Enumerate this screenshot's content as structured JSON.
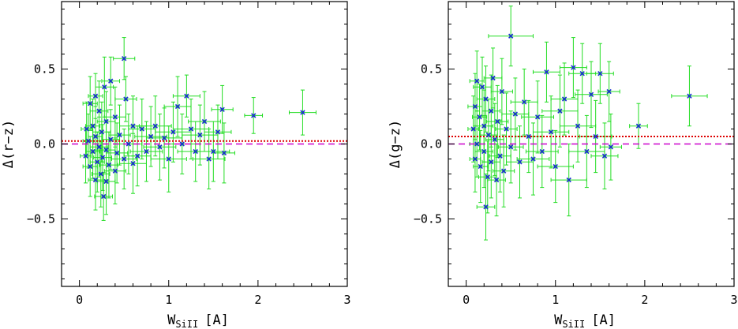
{
  "colors": {
    "errorbar": "#22dd22",
    "point": "#1a2fd0",
    "reference_line": "#cc00cc",
    "mean_line": "#dd0000",
    "axis": "#000000"
  },
  "chart_data": [
    {
      "type": "scatter",
      "xlabel": "W",
      "xlabel_sub": "SiII",
      "xlabel_unit": "[A]",
      "ylabel": "Δ(r−z)",
      "xlim": [
        -0.2,
        3.0
      ],
      "ylim": [
        -0.95,
        0.95
      ],
      "x_ticks": [
        0,
        1,
        2,
        3
      ],
      "y_ticks": [
        0.5,
        0.0,
        -0.5
      ],
      "x_tick_labels": [
        "0",
        "1",
        "2",
        "3"
      ],
      "y_tick_labels": [
        "0.5",
        "0.0",
        "−0.5"
      ],
      "reference_line": {
        "y": 0.0,
        "style": "dashed"
      },
      "mean_line": {
        "y": 0.02,
        "style": "dotted"
      },
      "points": [
        {
          "x": 0.5,
          "y": 0.57,
          "xerr": 0.12,
          "yerr": 0.14
        },
        {
          "x": 0.35,
          "y": 0.42,
          "xerr": 0.1,
          "yerr": 0.16
        },
        {
          "x": 0.28,
          "y": 0.38,
          "xerr": 0.1,
          "yerr": 0.2
        },
        {
          "x": 0.18,
          "y": 0.32,
          "xerr": 0.08,
          "yerr": 0.15
        },
        {
          "x": 0.52,
          "y": 0.3,
          "xerr": 0.12,
          "yerr": 0.15
        },
        {
          "x": 0.12,
          "y": 0.27,
          "xerr": 0.08,
          "yerr": 0.18
        },
        {
          "x": 0.22,
          "y": 0.22,
          "xerr": 0.1,
          "yerr": 0.2
        },
        {
          "x": 0.4,
          "y": 0.18,
          "xerr": 0.12,
          "yerr": 0.2
        },
        {
          "x": 0.3,
          "y": 0.15,
          "xerr": 0.1,
          "yerr": 0.2
        },
        {
          "x": 0.15,
          "y": 0.12,
          "xerr": 0.08,
          "yerr": 0.18
        },
        {
          "x": 0.6,
          "y": 0.12,
          "xerr": 0.15,
          "yerr": 0.2
        },
        {
          "x": 0.08,
          "y": 0.1,
          "xerr": 0.06,
          "yerr": 0.18
        },
        {
          "x": 0.25,
          "y": 0.08,
          "xerr": 0.1,
          "yerr": 0.2
        },
        {
          "x": 0.45,
          "y": 0.06,
          "xerr": 0.12,
          "yerr": 0.2
        },
        {
          "x": 0.18,
          "y": 0.05,
          "xerr": 0.08,
          "yerr": 0.2
        },
        {
          "x": 0.35,
          "y": 0.03,
          "xerr": 0.1,
          "yerr": 0.2
        },
        {
          "x": 0.1,
          "y": 0.02,
          "xerr": 0.06,
          "yerr": 0.18
        },
        {
          "x": 0.55,
          "y": 0.0,
          "xerr": 0.15,
          "yerr": 0.2
        },
        {
          "x": 0.22,
          "y": -0.02,
          "xerr": 0.1,
          "yerr": 0.2
        },
        {
          "x": 0.3,
          "y": -0.04,
          "xerr": 0.1,
          "yerr": 0.2
        },
        {
          "x": 0.15,
          "y": -0.05,
          "xerr": 0.08,
          "yerr": 0.18
        },
        {
          "x": 0.42,
          "y": -0.06,
          "xerr": 0.12,
          "yerr": 0.2
        },
        {
          "x": 0.07,
          "y": -0.08,
          "xerr": 0.06,
          "yerr": 0.18
        },
        {
          "x": 0.26,
          "y": -0.09,
          "xerr": 0.1,
          "yerr": 0.22
        },
        {
          "x": 0.5,
          "y": -0.1,
          "xerr": 0.14,
          "yerr": 0.2
        },
        {
          "x": 0.2,
          "y": -0.12,
          "xerr": 0.08,
          "yerr": 0.2
        },
        {
          "x": 0.33,
          "y": -0.14,
          "xerr": 0.1,
          "yerr": 0.22
        },
        {
          "x": 0.12,
          "y": -0.15,
          "xerr": 0.08,
          "yerr": 0.2
        },
        {
          "x": 0.6,
          "y": -0.13,
          "xerr": 0.15,
          "yerr": 0.2
        },
        {
          "x": 0.4,
          "y": -0.18,
          "xerr": 0.12,
          "yerr": 0.22
        },
        {
          "x": 0.24,
          "y": -0.2,
          "xerr": 0.1,
          "yerr": 0.22
        },
        {
          "x": 0.18,
          "y": -0.24,
          "xerr": 0.08,
          "yerr": 0.2
        },
        {
          "x": 0.3,
          "y": -0.25,
          "xerr": 0.1,
          "yerr": 0.22
        },
        {
          "x": 0.27,
          "y": -0.35,
          "xerr": 0.1,
          "yerr": 0.16
        },
        {
          "x": 0.7,
          "y": 0.1,
          "xerr": 0.15,
          "yerr": 0.2
        },
        {
          "x": 0.75,
          "y": -0.05,
          "xerr": 0.18,
          "yerr": 0.2
        },
        {
          "x": 0.8,
          "y": 0.05,
          "xerr": 0.18,
          "yerr": 0.2
        },
        {
          "x": 0.65,
          "y": -0.08,
          "xerr": 0.15,
          "yerr": 0.2
        },
        {
          "x": 0.85,
          "y": 0.12,
          "xerr": 0.18,
          "yerr": 0.2
        },
        {
          "x": 0.9,
          "y": -0.02,
          "xerr": 0.18,
          "yerr": 0.22
        },
        {
          "x": 0.95,
          "y": 0.04,
          "xerr": 0.2,
          "yerr": 0.2
        },
        {
          "x": 1.0,
          "y": -0.1,
          "xerr": 0.2,
          "yerr": 0.22
        },
        {
          "x": 1.05,
          "y": 0.08,
          "xerr": 0.2,
          "yerr": 0.2
        },
        {
          "x": 1.1,
          "y": 0.25,
          "xerr": 0.15,
          "yerr": 0.2
        },
        {
          "x": 1.15,
          "y": 0.0,
          "xerr": 0.2,
          "yerr": 0.2
        },
        {
          "x": 1.2,
          "y": 0.32,
          "xerr": 0.15,
          "yerr": 0.14
        },
        {
          "x": 1.25,
          "y": 0.1,
          "xerr": 0.2,
          "yerr": 0.2
        },
        {
          "x": 1.3,
          "y": -0.05,
          "xerr": 0.2,
          "yerr": 0.2
        },
        {
          "x": 1.35,
          "y": 0.06,
          "xerr": 0.2,
          "yerr": 0.2
        },
        {
          "x": 1.4,
          "y": 0.15,
          "xerr": 0.18,
          "yerr": 0.2
        },
        {
          "x": 1.45,
          "y": -0.1,
          "xerr": 0.18,
          "yerr": 0.2
        },
        {
          "x": 1.5,
          "y": -0.05,
          "xerr": 0.18,
          "yerr": 0.2
        },
        {
          "x": 1.55,
          "y": 0.08,
          "xerr": 0.15,
          "yerr": 0.18
        },
        {
          "x": 1.6,
          "y": 0.23,
          "xerr": 0.12,
          "yerr": 0.16
        },
        {
          "x": 1.62,
          "y": -0.06,
          "xerr": 0.12,
          "yerr": 0.2
        },
        {
          "x": 1.95,
          "y": 0.19,
          "xerr": 0.1,
          "yerr": 0.12
        },
        {
          "x": 2.5,
          "y": 0.21,
          "xerr": 0.15,
          "yerr": 0.15
        }
      ]
    },
    {
      "type": "scatter",
      "xlabel": "W",
      "xlabel_sub": "SiII",
      "xlabel_unit": "[A]",
      "ylabel": "Δ(g−z)",
      "xlim": [
        -0.2,
        3.0
      ],
      "ylim": [
        -0.95,
        0.95
      ],
      "x_ticks": [
        0,
        1,
        2,
        3
      ],
      "y_ticks": [
        0.5,
        0.0,
        -0.5
      ],
      "x_tick_labels": [
        "0",
        "1",
        "2",
        "3"
      ],
      "y_tick_labels": [
        "0.5",
        "0.0",
        "−0.5"
      ],
      "reference_line": {
        "y": 0.0,
        "style": "dashed"
      },
      "mean_line": {
        "y": 0.05,
        "style": "dotted"
      },
      "points": [
        {
          "x": 0.5,
          "y": 0.72,
          "xerr": 0.25,
          "yerr": 0.2
        },
        {
          "x": 0.12,
          "y": 0.42,
          "xerr": 0.08,
          "yerr": 0.2
        },
        {
          "x": 0.3,
          "y": 0.44,
          "xerr": 0.1,
          "yerr": 0.2
        },
        {
          "x": 0.18,
          "y": 0.38,
          "xerr": 0.1,
          "yerr": 0.2
        },
        {
          "x": 0.4,
          "y": 0.35,
          "xerr": 0.12,
          "yerr": 0.22
        },
        {
          "x": 0.22,
          "y": 0.3,
          "xerr": 0.1,
          "yerr": 0.22
        },
        {
          "x": 0.1,
          "y": 0.25,
          "xerr": 0.08,
          "yerr": 0.22
        },
        {
          "x": 0.28,
          "y": 0.22,
          "xerr": 0.1,
          "yerr": 0.24
        },
        {
          "x": 0.55,
          "y": 0.2,
          "xerr": 0.15,
          "yerr": 0.24
        },
        {
          "x": 0.15,
          "y": 0.18,
          "xerr": 0.08,
          "yerr": 0.22
        },
        {
          "x": 0.35,
          "y": 0.15,
          "xerr": 0.12,
          "yerr": 0.24
        },
        {
          "x": 0.2,
          "y": 0.12,
          "xerr": 0.1,
          "yerr": 0.24
        },
        {
          "x": 0.08,
          "y": 0.1,
          "xerr": 0.06,
          "yerr": 0.22
        },
        {
          "x": 0.45,
          "y": 0.1,
          "xerr": 0.12,
          "yerr": 0.24
        },
        {
          "x": 0.25,
          "y": 0.06,
          "xerr": 0.1,
          "yerr": 0.24
        },
        {
          "x": 0.32,
          "y": 0.03,
          "xerr": 0.1,
          "yerr": 0.24
        },
        {
          "x": 0.12,
          "y": 0.0,
          "xerr": 0.08,
          "yerr": 0.22
        },
        {
          "x": 0.5,
          "y": -0.02,
          "xerr": 0.14,
          "yerr": 0.24
        },
        {
          "x": 0.2,
          "y": -0.05,
          "xerr": 0.1,
          "yerr": 0.24
        },
        {
          "x": 0.38,
          "y": -0.08,
          "xerr": 0.12,
          "yerr": 0.24
        },
        {
          "x": 0.1,
          "y": -0.1,
          "xerr": 0.06,
          "yerr": 0.22
        },
        {
          "x": 0.28,
          "y": -0.12,
          "xerr": 0.1,
          "yerr": 0.24
        },
        {
          "x": 0.6,
          "y": -0.12,
          "xerr": 0.15,
          "yerr": 0.24
        },
        {
          "x": 0.16,
          "y": -0.15,
          "xerr": 0.08,
          "yerr": 0.24
        },
        {
          "x": 0.42,
          "y": -0.18,
          "xerr": 0.12,
          "yerr": 0.24
        },
        {
          "x": 0.24,
          "y": -0.22,
          "xerr": 0.1,
          "yerr": 0.24
        },
        {
          "x": 0.34,
          "y": -0.24,
          "xerr": 0.1,
          "yerr": 0.24
        },
        {
          "x": 0.22,
          "y": -0.42,
          "xerr": 0.1,
          "yerr": 0.22
        },
        {
          "x": 0.65,
          "y": 0.28,
          "xerr": 0.15,
          "yerr": 0.22
        },
        {
          "x": 0.7,
          "y": 0.05,
          "xerr": 0.15,
          "yerr": 0.24
        },
        {
          "x": 0.75,
          "y": -0.1,
          "xerr": 0.18,
          "yerr": 0.24
        },
        {
          "x": 0.8,
          "y": 0.18,
          "xerr": 0.18,
          "yerr": 0.24
        },
        {
          "x": 0.85,
          "y": -0.05,
          "xerr": 0.18,
          "yerr": 0.24
        },
        {
          "x": 0.9,
          "y": 0.48,
          "xerr": 0.15,
          "yerr": 0.2
        },
        {
          "x": 0.95,
          "y": 0.08,
          "xerr": 0.2,
          "yerr": 0.24
        },
        {
          "x": 1.0,
          "y": -0.15,
          "xerr": 0.2,
          "yerr": 0.24
        },
        {
          "x": 1.05,
          "y": 0.22,
          "xerr": 0.2,
          "yerr": 0.24
        },
        {
          "x": 1.1,
          "y": 0.3,
          "xerr": 0.15,
          "yerr": 0.24
        },
        {
          "x": 1.15,
          "y": -0.24,
          "xerr": 0.2,
          "yerr": 0.24
        },
        {
          "x": 1.2,
          "y": 0.51,
          "xerr": 0.15,
          "yerr": 0.2
        },
        {
          "x": 1.25,
          "y": 0.12,
          "xerr": 0.2,
          "yerr": 0.24
        },
        {
          "x": 1.3,
          "y": 0.47,
          "xerr": 0.15,
          "yerr": 0.2
        },
        {
          "x": 1.35,
          "y": -0.05,
          "xerr": 0.2,
          "yerr": 0.24
        },
        {
          "x": 1.4,
          "y": 0.33,
          "xerr": 0.18,
          "yerr": 0.22
        },
        {
          "x": 1.45,
          "y": 0.05,
          "xerr": 0.18,
          "yerr": 0.24
        },
        {
          "x": 1.5,
          "y": 0.47,
          "xerr": 0.15,
          "yerr": 0.2
        },
        {
          "x": 1.55,
          "y": -0.08,
          "xerr": 0.15,
          "yerr": 0.22
        },
        {
          "x": 1.6,
          "y": 0.35,
          "xerr": 0.12,
          "yerr": 0.2
        },
        {
          "x": 1.62,
          "y": -0.02,
          "xerr": 0.12,
          "yerr": 0.22
        },
        {
          "x": 1.93,
          "y": 0.12,
          "xerr": 0.1,
          "yerr": 0.15
        },
        {
          "x": 2.5,
          "y": 0.32,
          "xerr": 0.2,
          "yerr": 0.2
        }
      ]
    }
  ]
}
